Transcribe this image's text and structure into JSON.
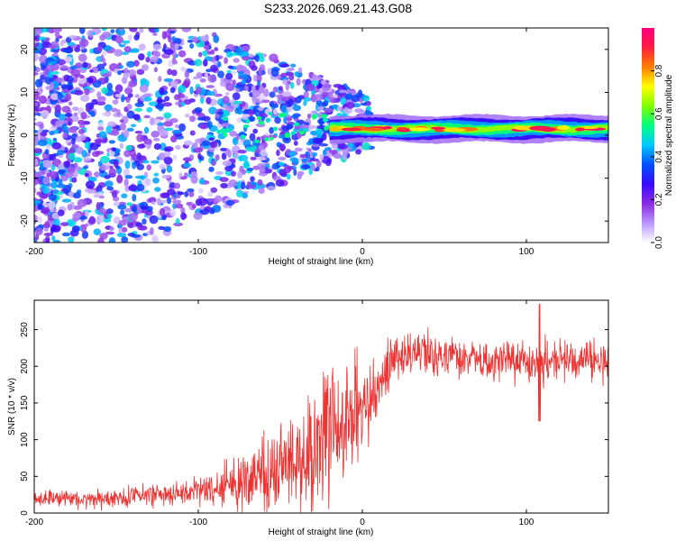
{
  "title": "S233.2026.069.21.43.G08",
  "chart_data": [
    {
      "type": "heatmap",
      "title": "S233.2026.069.21.43.G08",
      "xlabel": "Height of straight line (km)",
      "ylabel": "Frequency (Hz)",
      "xlim": [
        -200,
        150
      ],
      "ylim": [
        -25,
        25
      ],
      "x_ticks": [
        -200,
        -100,
        0,
        100
      ],
      "y_ticks": [
        -20,
        -10,
        0,
        10,
        20
      ],
      "colorbar": {
        "label": "Normalized spectral amplitude",
        "range": [
          0,
          1
        ],
        "ticks": [
          "0.0",
          "0.2",
          "0.4",
          "0.6",
          "0.8"
        ],
        "colors": [
          "#ffffff",
          "#b896ff",
          "#8a2be2",
          "#3a0bff",
          "#0050ff",
          "#00c8ff",
          "#00ff7f",
          "#7fff00",
          "#ffff00",
          "#ff7f00",
          "#ff1f3f",
          "#ff007f"
        ]
      },
      "band": {
        "x_start": -20,
        "x_end": 150,
        "center_hz": 1.5,
        "half_width_hz": 1.5,
        "peak_amplitude": 0.85
      },
      "scatter_region": {
        "x_start": -200,
        "x_end": -15,
        "freq_range": [
          -25,
          25
        ],
        "amplitude_range": [
          0.1,
          0.5
        ]
      }
    },
    {
      "type": "line",
      "xlabel": "Height of straight line (km)",
      "ylabel": "SNR (10 * v/v)",
      "xlim": [
        -200,
        150
      ],
      "ylim": [
        0,
        290
      ],
      "x_ticks": [
        -200,
        -100,
        0,
        100
      ],
      "y_ticks": [
        0,
        50,
        100,
        150,
        200,
        250
      ],
      "series": [
        {
          "name": "SNR",
          "color": "#ee3333",
          "trend_x": [
            -200,
            -150,
            -110,
            -90,
            -70,
            -50,
            -35,
            -25,
            -15,
            -5,
            5,
            10,
            20,
            30,
            50,
            100,
            150
          ],
          "trend_y": [
            20,
            20,
            28,
            32,
            45,
            60,
            80,
            100,
            125,
            140,
            150,
            175,
            210,
            218,
            212,
            208,
            205
          ],
          "noise_x": [
            -200,
            -100,
            -50,
            -20,
            20,
            150
          ],
          "noise_amp": [
            6,
            10,
            35,
            55,
            18,
            15
          ]
        }
      ]
    }
  ]
}
